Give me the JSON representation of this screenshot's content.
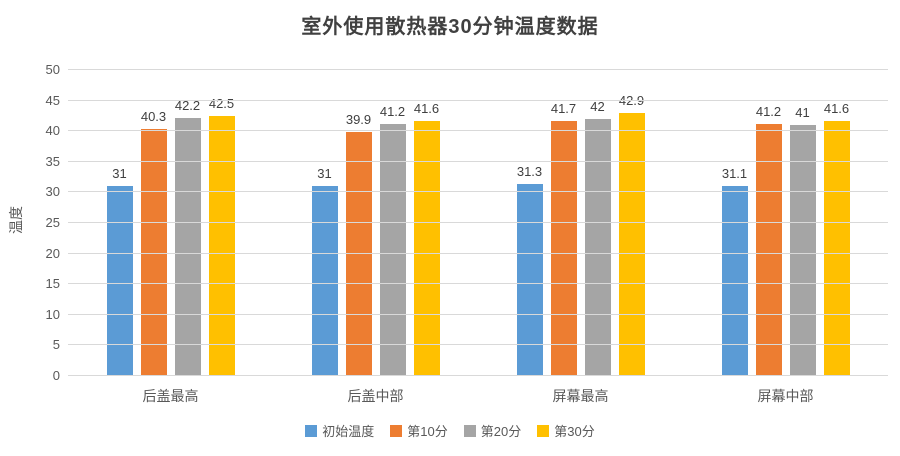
{
  "chart_data": {
    "type": "bar",
    "title": "室外使用散热器30分钟温度数据",
    "ylabel": "温度",
    "xlabel": "",
    "categories": [
      "后盖最高",
      "后盖中部",
      "屏幕最高",
      "屏幕中部"
    ],
    "series": [
      {
        "name": "初始温度",
        "color": "#5B9BD5",
        "values": [
          31,
          31,
          31.3,
          31.1
        ]
      },
      {
        "name": "第10分",
        "color": "#ED7D31",
        "values": [
          40.3,
          39.9,
          41.7,
          41.2
        ]
      },
      {
        "name": "第20分",
        "color": "#A5A5A5",
        "values": [
          42.2,
          41.2,
          42,
          41
        ]
      },
      {
        "name": "第30分",
        "color": "#FFC000",
        "values": [
          42.5,
          41.6,
          42.9,
          41.6
        ]
      }
    ],
    "ylim": [
      0,
      50
    ],
    "ytick_step": 5,
    "grid": true,
    "legend_position": "bottom",
    "colors": {
      "grid": "#D9D9D9",
      "axis_text": "#595959",
      "title_text": "#404040",
      "data_label_text": "#404040"
    }
  }
}
